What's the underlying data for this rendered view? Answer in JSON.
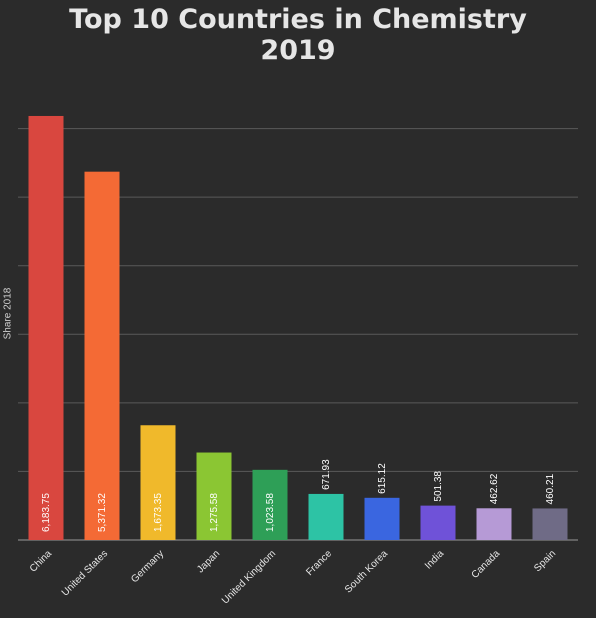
{
  "title_line1": "Top 10 Countries in Chemistry",
  "title_line2": "2019",
  "chart_data": {
    "type": "bar",
    "title": "Top 10 Countries in Chemistry 2019",
    "xlabel": "",
    "ylabel": "Share 2018",
    "ylim": [
      0,
      6300
    ],
    "grid": true,
    "categories": [
      "China",
      "United States",
      "Germany",
      "Japan",
      "United Kingdom",
      "France",
      "South Korea",
      "India",
      "Canada",
      "Spain"
    ],
    "values": [
      6183.75,
      5371.32,
      1673.35,
      1275.58,
      1023.58,
      671.93,
      615.12,
      501.38,
      462.62,
      460.21
    ],
    "value_labels": [
      "6,183.75",
      "5,371.32",
      "1,673.35",
      "1,275.58",
      "1,023.58",
      "671.93",
      "615.12",
      "501.38",
      "462.62",
      "460.21"
    ],
    "colors": [
      "#d9473f",
      "#f46a35",
      "#f0b92b",
      "#8bc633",
      "#2e9f57",
      "#2dc3a5",
      "#3a66e0",
      "#6f52d8",
      "#b69ad6",
      "#6f6b86"
    ]
  }
}
